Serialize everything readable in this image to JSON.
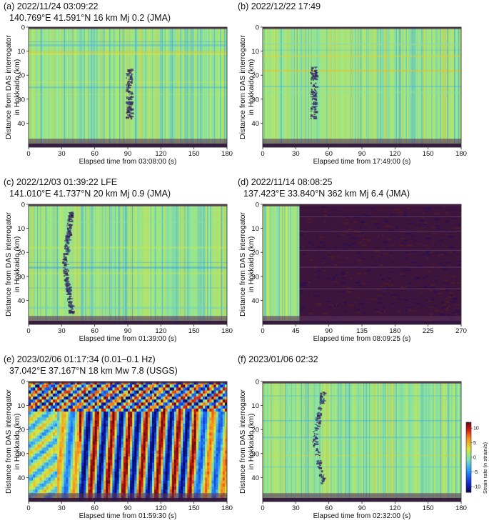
{
  "figure": {
    "y_axis_label_line1": "Distance from DAS interrogator",
    "y_axis_label_line2": "in Hokkaido (km)",
    "colorbar": {
      "label": "Strain rate (n strain/s)",
      "ticks": [
        10,
        5,
        0,
        -5,
        -10
      ],
      "range": [
        -12,
        12
      ]
    }
  },
  "chart_data": [
    {
      "id": "a",
      "type": "heatmap",
      "title_line1": "(a) 2022/11/24 03:09:22",
      "title_line2": "140.769°E 41.591°N 16 km Mj 0.2 (JMA)",
      "xlabel": "Elapsed time from 03:08:00 (s)",
      "x_ticks": [
        0,
        30,
        60,
        90,
        120,
        150,
        180
      ],
      "xlim": [
        0,
        180
      ],
      "y_ticks": [
        0,
        10,
        20,
        30,
        40
      ],
      "ylim": [
        0,
        50
      ],
      "style": "ambient",
      "events": [
        {
          "t_start": 88,
          "t_end": 93,
          "d_start": 17,
          "d_end": 38
        }
      ]
    },
    {
      "id": "b",
      "type": "heatmap",
      "title_line1": "(b) 2022/12/22 17:49",
      "title_line2": "",
      "xlabel": "Elapsed time from 17:49:00 (s)",
      "x_ticks": [
        0,
        30,
        60,
        90,
        120,
        150,
        180
      ],
      "xlim": [
        0,
        180
      ],
      "y_ticks": [
        0,
        10,
        20,
        30,
        40
      ],
      "ylim": [
        0,
        50
      ],
      "style": "ambient",
      "events": [
        {
          "t_start": 43,
          "t_end": 48,
          "d_start": 16,
          "d_end": 38
        }
      ]
    },
    {
      "id": "c",
      "type": "heatmap",
      "title_line1": "(c) 2022/12/03 01:39:22 LFE",
      "title_line2": "141.010°E 41.737°N 20 km Mj 0.9 (JMA)",
      "xlabel": "Elapsed time from 01:39:00 (s)",
      "x_ticks": [
        0,
        30,
        60,
        90,
        120,
        150,
        180
      ],
      "xlim": [
        0,
        180
      ],
      "y_ticks": [
        0,
        10,
        20,
        30,
        40
      ],
      "ylim": [
        0,
        50
      ],
      "style": "lfe",
      "events": [
        {
          "t_start": 30,
          "t_end": 45,
          "d_start": 3,
          "d_end": 45
        }
      ]
    },
    {
      "id": "d",
      "type": "heatmap",
      "title_line1": "(d) 2022/11/14 08:08:25",
      "title_line2": "137.423°E 33.840°N 362 km Mj 6.4 (JMA)",
      "xlabel": "Elapsed time from 08:09:25 (s)",
      "x_ticks": [
        0,
        45,
        90,
        135,
        180,
        225,
        270
      ],
      "xlim": [
        0,
        270
      ],
      "y_ticks": [
        0,
        10,
        20,
        30,
        40
      ],
      "ylim": [
        0,
        50
      ],
      "style": "saturated",
      "events": [
        {
          "t_start": 50,
          "t_end": 270,
          "d_start": 0,
          "d_end": 50
        }
      ]
    },
    {
      "id": "e",
      "type": "heatmap",
      "title_line1": "(e) 2023/02/06 01:17:34 (0.01–0.1 Hz)",
      "title_line2": "37.042°E 37.167°N 18 km Mw 7.8 (USGS)",
      "xlabel": "Elapsed time from 01:59:30 (s)",
      "x_ticks": [
        0,
        30,
        60,
        90,
        120,
        150,
        180
      ],
      "xlim": [
        0,
        180
      ],
      "y_ticks": [
        0,
        10,
        20,
        30,
        40
      ],
      "ylim": [
        0,
        50
      ],
      "style": "waves",
      "events": [
        {
          "t_start": 30,
          "t_end": 180,
          "d_start": 13,
          "d_end": 50
        }
      ]
    },
    {
      "id": "f",
      "type": "heatmap",
      "title_line1": "(f) 2023/01/06 02:32",
      "title_line2": "",
      "xlabel": "Elapsed time from 02:32:00 (s)",
      "x_ticks": [
        0,
        30,
        60,
        90,
        120,
        150,
        180
      ],
      "xlim": [
        0,
        180
      ],
      "y_ticks": [
        0,
        10,
        20,
        30,
        40
      ],
      "ylim": [
        0,
        50
      ],
      "style": "ambient",
      "events": [
        {
          "t_start": 44,
          "t_end": 65,
          "d_start": 4,
          "d_end": 43
        }
      ]
    }
  ]
}
